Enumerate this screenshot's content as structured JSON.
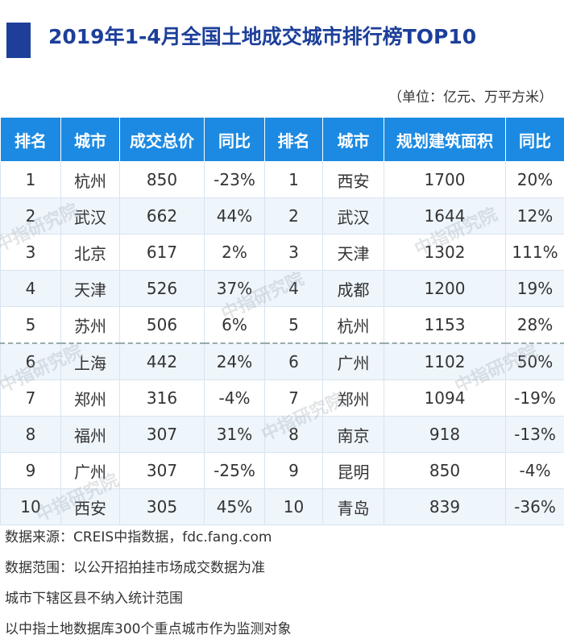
{
  "header": {
    "title": "2019年1-4月全国土地成交城市排行榜TOP10",
    "unit": "（单位：亿元、万平方米）"
  },
  "table": {
    "columns": [
      "排名",
      "城市",
      "成交总价",
      "同比",
      "排名",
      "城市",
      "规划建筑面积",
      "同比"
    ],
    "rows": [
      [
        "1",
        "杭州",
        "850",
        "-23%",
        "1",
        "西安",
        "1700",
        "20%"
      ],
      [
        "2",
        "武汉",
        "662",
        "44%",
        "2",
        "武汉",
        "1644",
        "12%"
      ],
      [
        "3",
        "北京",
        "617",
        "2%",
        "3",
        "天津",
        "1302",
        "111%"
      ],
      [
        "4",
        "天津",
        "526",
        "37%",
        "4",
        "成都",
        "1200",
        "19%"
      ],
      [
        "5",
        "苏州",
        "506",
        "6%",
        "5",
        "杭州",
        "1153",
        "28%"
      ],
      [
        "6",
        "上海",
        "442",
        "24%",
        "6",
        "广州",
        "1102",
        "50%"
      ],
      [
        "7",
        "郑州",
        "316",
        "-4%",
        "7",
        "郑州",
        "1094",
        "-19%"
      ],
      [
        "8",
        "福州",
        "307",
        "31%",
        "8",
        "南京",
        "918",
        "-13%"
      ],
      [
        "9",
        "广州",
        "307",
        "-25%",
        "9",
        "昆明",
        "850",
        "-4%"
      ],
      [
        "10",
        "西安",
        "305",
        "45%",
        "10",
        "青岛",
        "839",
        "-36%"
      ]
    ]
  },
  "watermark": "中指研究院",
  "footer": [
    "数据来源：CREIS中指数据，fdc.fang.com",
    "数据范围：以公开招拍挂市场成交数据为准",
    "城市下辖区县不纳入统计范围",
    "以中指土地数据库300个重点城市作为监测对象"
  ]
}
